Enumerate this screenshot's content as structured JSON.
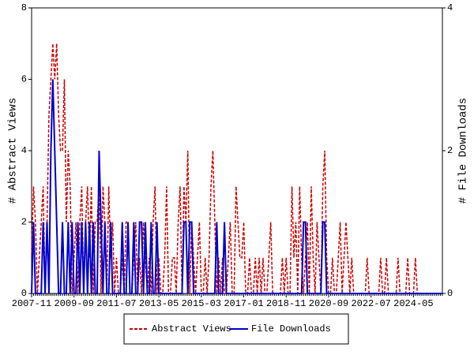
{
  "chart_data": {
    "type": "line",
    "categories": [
      "2007-11",
      null,
      null,
      null,
      null,
      null,
      null,
      null,
      null,
      null,
      null,
      null,
      null,
      null,
      null,
      null,
      null,
      null,
      null,
      null,
      null,
      null,
      "2009-09",
      null,
      null,
      null,
      null,
      null,
      null,
      null,
      null,
      null,
      null,
      null,
      null,
      null,
      null,
      null,
      null,
      null,
      null,
      null,
      null,
      null,
      "2011-07",
      null,
      null,
      null,
      null,
      null,
      null,
      null,
      null,
      null,
      null,
      null,
      null,
      null,
      null,
      null,
      null,
      null,
      null,
      null,
      null,
      null,
      "2013-05",
      null,
      null,
      null,
      null,
      null,
      null,
      null,
      null,
      null,
      null,
      null,
      null,
      null,
      null,
      null,
      null,
      null,
      null,
      null,
      null,
      null,
      "2015-03",
      null,
      null,
      null,
      null,
      null,
      null,
      null,
      null,
      null,
      null,
      null,
      null,
      null,
      null,
      null,
      null,
      null,
      null,
      null,
      null,
      null,
      "2017-01",
      null,
      null,
      null,
      null,
      null,
      null,
      null,
      null,
      null,
      null,
      null,
      null,
      null,
      null,
      null,
      null,
      null,
      null,
      null,
      null,
      null,
      "2018-11",
      null,
      null,
      null,
      null,
      null,
      null,
      null,
      null,
      null,
      null,
      null,
      null,
      null,
      null,
      null,
      null,
      null,
      null,
      null,
      null,
      null,
      "2020-09",
      null,
      null,
      null,
      null,
      null,
      null,
      null,
      null,
      null,
      null,
      null,
      null,
      null,
      null,
      null,
      null,
      null,
      null,
      null,
      null,
      null,
      "2022-07",
      null,
      null,
      null,
      null,
      null,
      null,
      null,
      null,
      null,
      null,
      null,
      null,
      null,
      null,
      null,
      null,
      null,
      null,
      null,
      null,
      null,
      "2024-05",
      null,
      null,
      null,
      null,
      null,
      null,
      null,
      null,
      null,
      null,
      null,
      null,
      null,
      null,
      null
    ],
    "ylabel": "# Abstract Views",
    "y2label": "# File Downloads",
    "ylim": [
      0,
      8
    ],
    "yticks": [
      0,
      2,
      4,
      6,
      8
    ],
    "y2lim": [
      0,
      4
    ],
    "y2ticks": [
      0,
      2,
      4
    ],
    "series": [
      {
        "name": "Abstract Views",
        "color": "#cc0000",
        "dashed": true,
        "values": [
          1,
          3,
          2,
          0,
          1,
          2,
          3,
          0,
          2,
          5,
          6,
          7,
          6,
          7,
          5,
          4,
          4,
          6,
          2,
          4,
          3,
          0,
          1,
          2,
          0,
          2,
          3,
          0,
          2,
          3,
          1,
          3,
          0,
          2,
          2,
          3,
          0,
          3,
          2,
          0,
          3,
          1,
          2,
          0,
          1,
          0,
          0,
          1,
          0,
          2,
          2,
          0,
          0,
          1,
          2,
          0,
          1,
          0,
          2,
          1,
          0,
          1,
          0,
          2,
          3,
          0,
          1,
          0,
          0,
          1,
          3,
          0,
          0,
          1,
          1,
          0,
          2,
          3,
          0,
          3,
          2,
          4,
          0,
          2,
          1,
          0,
          1,
          2,
          0,
          0,
          1,
          0,
          1,
          3,
          4,
          2,
          0,
          1,
          0,
          1,
          0,
          0,
          1,
          2,
          0,
          0,
          3,
          2,
          1,
          1,
          2,
          0,
          0,
          1,
          0,
          0,
          1,
          0,
          1,
          0,
          1,
          0,
          0,
          1,
          2,
          0,
          0,
          0,
          0,
          0,
          1,
          0,
          1,
          0,
          0,
          3,
          1,
          2,
          0,
          3,
          1,
          0,
          1,
          2,
          0,
          3,
          1,
          0,
          2,
          1,
          0,
          3,
          4,
          1,
          0,
          0,
          1,
          0,
          0,
          1,
          2,
          0,
          1,
          2,
          1,
          0,
          1,
          0,
          0,
          0,
          0,
          0,
          0,
          0,
          1,
          0,
          0,
          0,
          0,
          0,
          0,
          1,
          0,
          0,
          1,
          0,
          0,
          0,
          0,
          0,
          1,
          0,
          0,
          0,
          0,
          1,
          0,
          0,
          0,
          1,
          0,
          0,
          0,
          0,
          0,
          0,
          0,
          0,
          0,
          0,
          0,
          0,
          0,
          0
        ]
      },
      {
        "name": "File Downloads",
        "color": "#0000cc",
        "axis": "y2",
        "values": [
          0,
          1,
          0,
          0,
          0,
          0,
          1,
          0,
          1,
          0,
          2,
          3,
          2,
          1,
          0,
          0,
          1,
          0,
          0,
          1,
          0,
          1,
          0,
          0,
          1,
          0,
          1,
          0,
          1,
          0,
          1,
          0,
          1,
          0,
          0,
          2,
          1,
          0,
          1,
          0,
          0,
          1,
          0,
          0,
          0,
          0,
          0,
          1,
          0,
          0,
          1,
          0,
          0,
          1,
          0,
          0,
          1,
          1,
          0,
          1,
          0,
          0,
          1,
          0,
          0,
          1,
          0,
          0,
          0,
          0,
          0,
          0,
          0,
          0,
          0,
          0,
          0,
          0,
          0,
          1,
          1,
          0,
          1,
          1,
          0,
          0,
          0,
          0,
          0,
          0,
          0,
          0,
          0,
          0,
          0,
          0,
          1,
          0,
          0,
          0,
          1,
          0,
          0,
          0,
          0,
          0,
          0,
          0,
          0,
          0,
          0,
          0,
          0,
          0,
          0,
          0,
          0,
          0,
          0,
          0,
          0,
          0,
          0,
          0,
          0,
          0,
          0,
          0,
          0,
          0,
          0,
          0,
          0,
          0,
          0,
          0,
          0,
          0,
          0,
          0,
          0,
          1,
          1,
          0,
          0,
          0,
          0,
          0,
          0,
          0,
          0,
          1,
          1,
          0,
          0,
          0,
          0,
          0,
          0,
          0,
          0,
          0,
          0,
          0,
          0,
          0,
          0,
          0,
          0,
          0,
          0,
          0,
          0,
          0,
          0,
          0,
          0,
          0,
          0,
          0,
          0,
          0,
          0,
          0,
          0,
          0,
          0,
          0,
          0,
          0,
          0,
          0,
          0,
          0,
          0,
          0,
          0,
          0,
          0,
          0,
          0,
          0,
          0,
          0,
          0,
          0,
          0,
          0,
          0,
          0,
          0,
          0,
          0,
          0
        ]
      }
    ]
  }
}
